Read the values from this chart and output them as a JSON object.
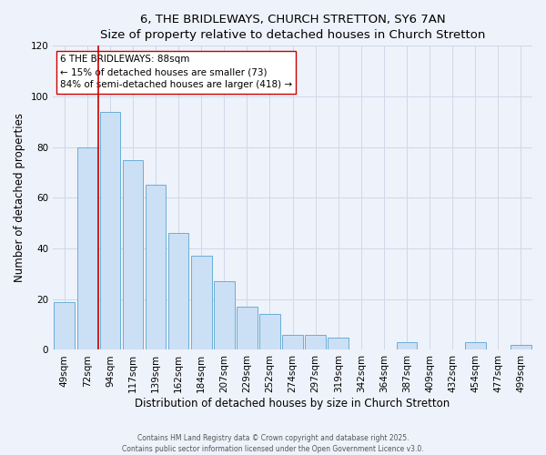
{
  "title": "6, THE BRIDLEWAYS, CHURCH STRETTON, SY6 7AN",
  "subtitle": "Size of property relative to detached houses in Church Stretton",
  "xlabel": "Distribution of detached houses by size in Church Stretton",
  "ylabel": "Number of detached properties",
  "bar_color": "#cce0f5",
  "bar_edge_color": "#6aaed6",
  "background_color": "#eef2fa",
  "grid_color": "#d0d8e8",
  "categories": [
    "49sqm",
    "72sqm",
    "94sqm",
    "117sqm",
    "139sqm",
    "162sqm",
    "184sqm",
    "207sqm",
    "229sqm",
    "252sqm",
    "274sqm",
    "297sqm",
    "319sqm",
    "342sqm",
    "364sqm",
    "387sqm",
    "409sqm",
    "432sqm",
    "454sqm",
    "477sqm",
    "499sqm"
  ],
  "values": [
    19,
    80,
    94,
    75,
    65,
    46,
    37,
    27,
    17,
    14,
    6,
    6,
    5,
    0,
    0,
    3,
    0,
    0,
    3,
    0,
    2
  ],
  "ylim": [
    0,
    120
  ],
  "yticks": [
    0,
    20,
    40,
    60,
    80,
    100,
    120
  ],
  "vline_x_index": 1.5,
  "vline_color": "#cc0000",
  "annotation_title": "6 THE BRIDLEWAYS: 88sqm",
  "annotation_line1": "← 15% of detached houses are smaller (73)",
  "annotation_line2": "84% of semi-detached houses are larger (418) →",
  "annotation_box_color": "#ffffff",
  "annotation_box_edge": "#cc0000",
  "footer1": "Contains HM Land Registry data © Crown copyright and database right 2025.",
  "footer2": "Contains public sector information licensed under the Open Government Licence v3.0."
}
